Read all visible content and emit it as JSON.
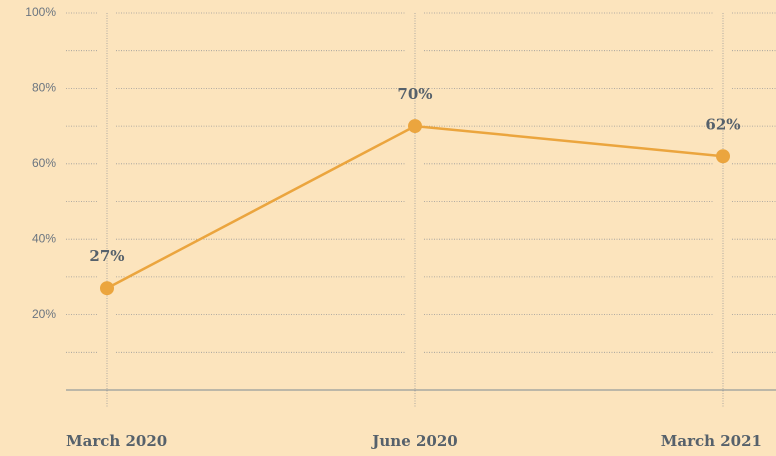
{
  "chart_data": {
    "type": "line",
    "categories": [
      "March 2020",
      "June 2020",
      "March 2021"
    ],
    "series": [
      {
        "color": "#eba53e",
        "values": [
          27,
          70,
          62
        ],
        "value_labels": [
          "27%",
          "70%",
          "62%"
        ]
      }
    ],
    "ylim": [
      0,
      100
    ],
    "yticks": [
      {
        "value": 20,
        "label": "20%"
      },
      {
        "value": 40,
        "label": "40%"
      },
      {
        "value": 60,
        "label": "60%"
      },
      {
        "value": 80,
        "label": "80%"
      },
      {
        "value": 100,
        "label": "100%"
      }
    ],
    "minor_yticks": [
      10,
      30,
      50,
      70,
      90
    ],
    "grid": true
  }
}
